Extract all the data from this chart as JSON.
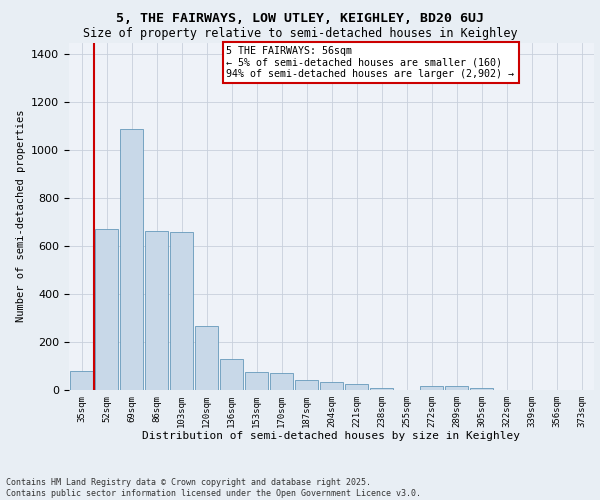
{
  "title1": "5, THE FAIRWAYS, LOW UTLEY, KEIGHLEY, BD20 6UJ",
  "title2": "Size of property relative to semi-detached houses in Keighley",
  "xlabel": "Distribution of semi-detached houses by size in Keighley",
  "ylabel": "Number of semi-detached properties",
  "categories": [
    "35sqm",
    "52sqm",
    "69sqm",
    "86sqm",
    "103sqm",
    "120sqm",
    "136sqm",
    "153sqm",
    "170sqm",
    "187sqm",
    "204sqm",
    "221sqm",
    "238sqm",
    "255sqm",
    "272sqm",
    "289sqm",
    "305sqm",
    "322sqm",
    "339sqm",
    "356sqm",
    "373sqm"
  ],
  "values": [
    80,
    670,
    1090,
    665,
    660,
    265,
    130,
    75,
    70,
    40,
    35,
    25,
    10,
    0,
    15,
    15,
    10,
    0,
    0,
    0,
    0
  ],
  "bar_color": "#c8d8e8",
  "bar_edge_color": "#6699bb",
  "annotation_title": "5 THE FAIRWAYS: 56sqm",
  "annotation_line1": "← 5% of semi-detached houses are smaller (160)",
  "annotation_line2": "94% of semi-detached houses are larger (2,902) →",
  "annotation_box_color": "#ffffff",
  "annotation_box_edge": "#cc0000",
  "ylim": [
    0,
    1450
  ],
  "background_color": "#e8eef4",
  "plot_bg_color": "#eef2f8",
  "footer1": "Contains HM Land Registry data © Crown copyright and database right 2025.",
  "footer2": "Contains public sector information licensed under the Open Government Licence v3.0.",
  "vline_pos": 1.5
}
